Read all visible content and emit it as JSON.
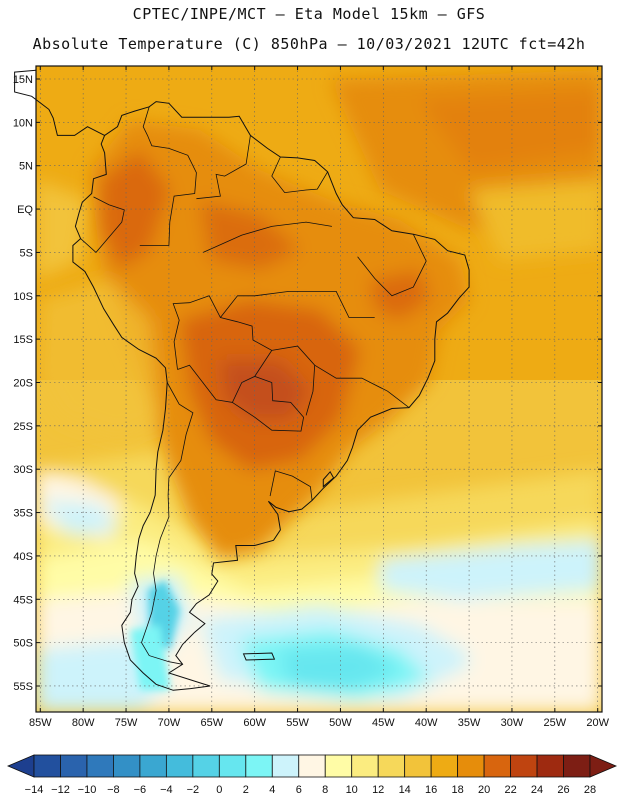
{
  "header": {
    "line1": "CPTEC/INPE/MCT –  Eta Model 15km – GFS",
    "line2": "Absolute Temperature (C) 850hPa – 10/03/2021 12UTC fct=42h"
  },
  "map": {
    "lat_ticks": [
      "15N",
      "10N",
      "5N",
      "EQ",
      "5S",
      "10S",
      "15S",
      "20S",
      "25S",
      "30S",
      "35S",
      "40S",
      "45S",
      "50S",
      "55S"
    ],
    "lat_values": [
      15,
      10,
      5,
      0,
      -5,
      -10,
      -15,
      -20,
      -25,
      -30,
      -35,
      -40,
      -45,
      -50,
      -55
    ],
    "lon_ticks": [
      "85W",
      "80W",
      "75W",
      "70W",
      "65W",
      "60W",
      "55W",
      "50W",
      "45W",
      "40W",
      "35W",
      "30W",
      "25W",
      "20W"
    ],
    "lon_values": [
      -85,
      -80,
      -75,
      -70,
      -65,
      -60,
      -55,
      -50,
      -45,
      -40,
      -35,
      -30,
      -25,
      -20
    ],
    "extent": {
      "lon_min": -85.5,
      "lon_max": -19.5,
      "lat_min": -58,
      "lat_max": 16.5
    }
  },
  "colorbar": {
    "labels": [
      "-14",
      "-12",
      "-10",
      "-8",
      "-6",
      "-4",
      "-2",
      "0",
      "2",
      "4",
      "6",
      "8",
      "10",
      "12",
      "14",
      "16",
      "18",
      "20",
      "22",
      "24",
      "26",
      "28"
    ],
    "colors": [
      "#1d3f8f",
      "#22509e",
      "#2a63ad",
      "#2f79bb",
      "#3390c6",
      "#3aa7d1",
      "#44bcdc",
      "#55d2e6",
      "#66e6ef",
      "#7cf5f5",
      "#cdf3fb",
      "#fff6e4",
      "#fffca6",
      "#fbec80",
      "#f6d85a",
      "#f2c33a",
      "#eeab14",
      "#e68d0b",
      "#d8650e",
      "#bf4410",
      "#9e2a10",
      "#7d1e14"
    ]
  }
}
